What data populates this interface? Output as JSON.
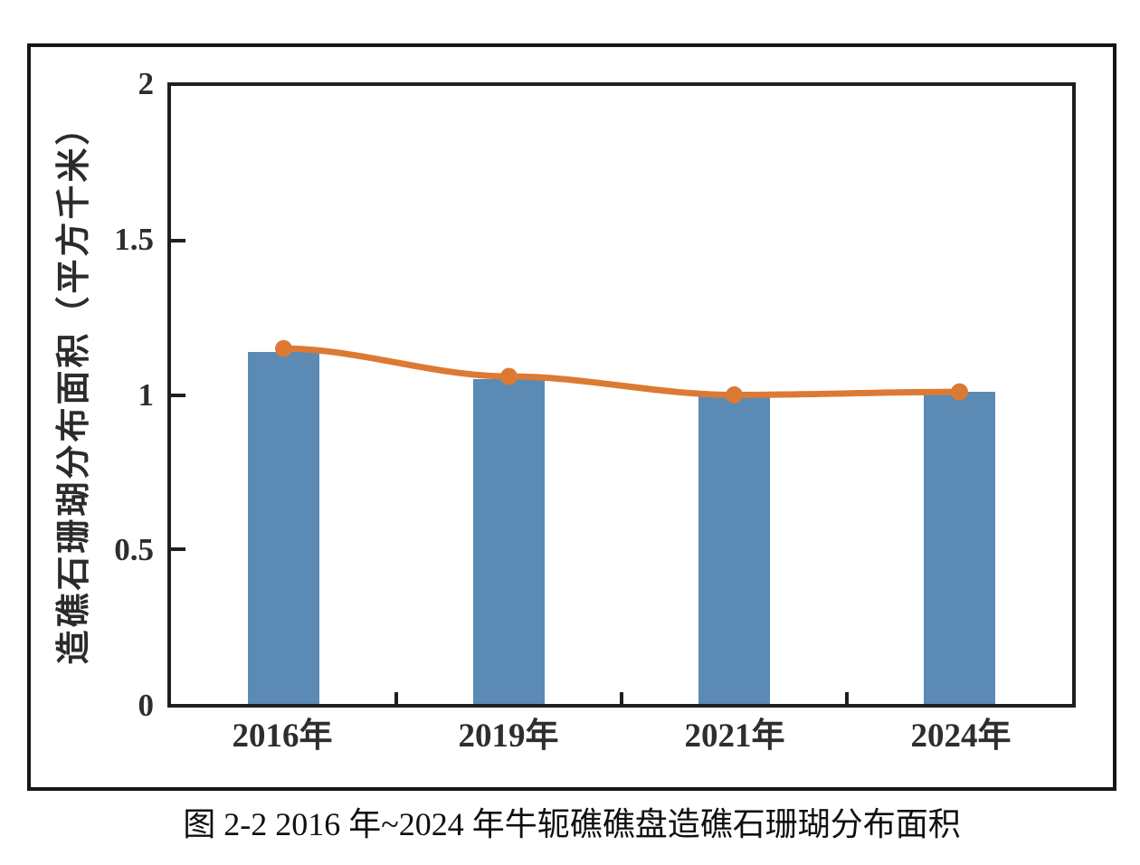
{
  "page": {
    "caption": "图 2-2 2016 年~2024 年牛轭礁礁盘造礁石珊瑚分布面积"
  },
  "chart_data": {
    "type": "bar",
    "categories": [
      "2016年",
      "2019年",
      "2021年",
      "2024年"
    ],
    "series": [
      {
        "name": "bars",
        "type": "bar",
        "color": "#5B8AB5",
        "values": [
          1.14,
          1.05,
          1.0,
          1.01
        ]
      },
      {
        "name": "line",
        "type": "line",
        "color": "#DC7A33",
        "marker": "circle",
        "values": [
          1.15,
          1.06,
          1.0,
          1.01
        ]
      }
    ],
    "title": "",
    "xlabel": "",
    "ylabel": "造礁石珊瑚分布面积（平方千米）",
    "ylim": [
      0,
      2
    ],
    "yticks": [
      0,
      0.5,
      1,
      1.5,
      2
    ],
    "ytick_labels": [
      "0",
      "0.5",
      "1",
      "1.5",
      "2"
    ],
    "grid": false,
    "legend": false,
    "frame": true,
    "axis_color": "#1F1F1F",
    "tick_label_color": "#2E2E2E"
  }
}
